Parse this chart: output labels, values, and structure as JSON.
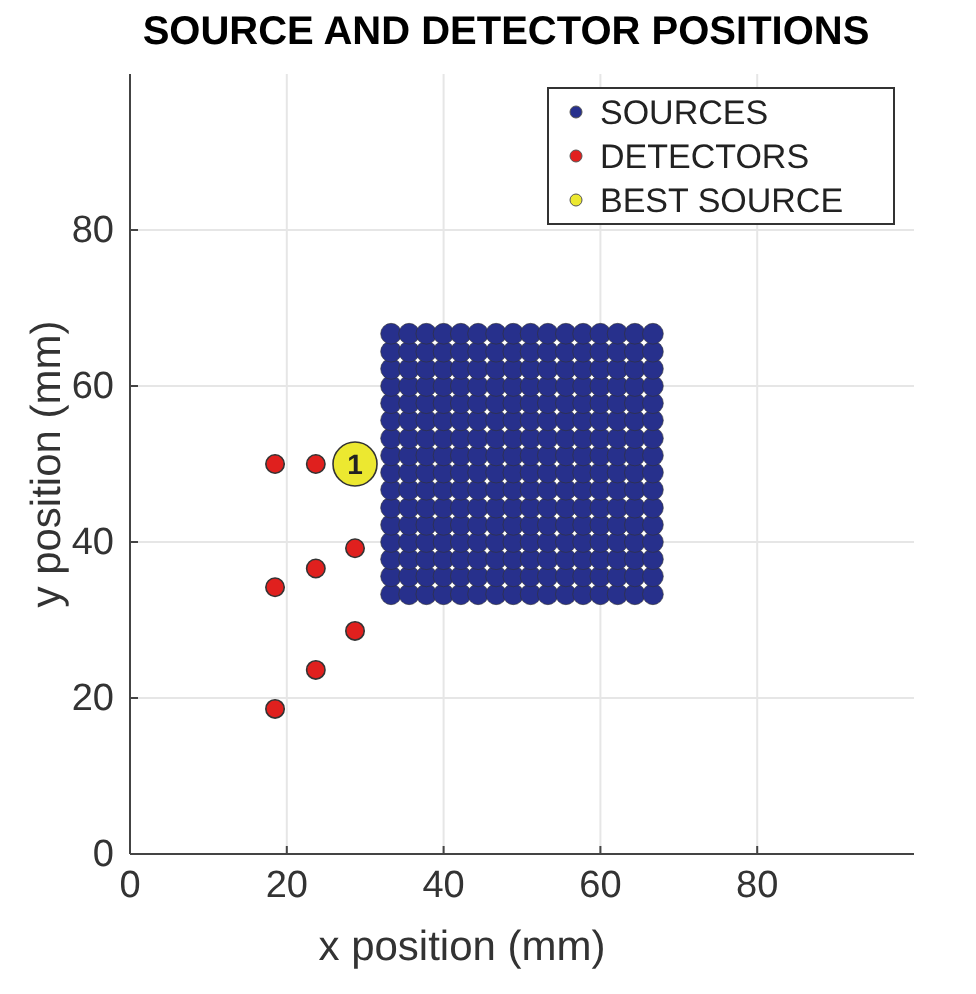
{
  "chart_data": {
    "type": "scatter",
    "title": "SOURCE AND DETECTOR POSITIONS",
    "xlabel": "x position (mm)",
    "ylabel": "y position (mm)",
    "xlim": [
      0,
      100
    ],
    "ylim": [
      0,
      100
    ],
    "xticks": [
      0,
      20,
      40,
      60,
      80
    ],
    "yticks": [
      0,
      20,
      40,
      60,
      80
    ],
    "grid": true,
    "legend": "top right",
    "marker": "circle",
    "series": [
      {
        "name": "SOURCES",
        "color": "#27308c",
        "x": [
          33.3,
          35.6,
          37.8,
          40.0,
          42.2,
          44.4,
          46.7,
          48.9,
          51.1,
          53.3,
          55.6,
          57.8,
          60.0,
          62.2,
          64.4,
          66.7,
          33.3,
          35.6,
          37.8,
          40.0,
          42.2,
          44.4,
          46.7,
          48.9,
          51.1,
          53.3,
          55.6,
          57.8,
          60.0,
          62.2,
          64.4,
          66.7,
          33.3,
          35.6,
          37.8,
          40.0,
          42.2,
          44.4,
          46.7,
          48.9,
          51.1,
          53.3,
          55.6,
          57.8,
          60.0,
          62.2,
          64.4,
          66.7,
          33.3,
          35.6,
          37.8,
          40.0,
          42.2,
          44.4,
          46.7,
          48.9,
          51.1,
          53.3,
          55.6,
          57.8,
          60.0,
          62.2,
          64.4,
          66.7,
          33.3,
          35.6,
          37.8,
          40.0,
          42.2,
          44.4,
          46.7,
          48.9,
          51.1,
          53.3,
          55.6,
          57.8,
          60.0,
          62.2,
          64.4,
          66.7,
          33.3,
          35.6,
          37.8,
          40.0,
          42.2,
          44.4,
          46.7,
          48.9,
          51.1,
          53.3,
          55.6,
          57.8,
          60.0,
          62.2,
          64.4,
          66.7,
          33.3,
          35.6,
          37.8,
          40.0,
          42.2,
          44.4,
          46.7,
          48.9,
          51.1,
          53.3,
          55.6,
          57.8,
          60.0,
          62.2,
          64.4,
          66.7,
          33.3,
          35.6,
          37.8,
          40.0,
          42.2,
          44.4,
          46.7,
          48.9,
          51.1,
          53.3,
          55.6,
          57.8,
          60.0,
          62.2,
          64.4,
          66.7,
          33.3,
          35.6,
          37.8,
          40.0,
          42.2,
          44.4,
          46.7,
          48.9,
          51.1,
          53.3,
          55.6,
          57.8,
          60.0,
          62.2,
          64.4,
          66.7,
          33.3,
          35.6,
          37.8,
          40.0,
          42.2,
          44.4,
          46.7,
          48.9,
          51.1,
          53.3,
          55.6,
          57.8,
          60.0,
          62.2,
          64.4,
          66.7,
          33.3,
          35.6,
          37.8,
          40.0,
          42.2,
          44.4,
          46.7,
          48.9,
          51.1,
          53.3,
          55.6,
          57.8,
          60.0,
          62.2,
          64.4,
          66.7,
          33.3,
          35.6,
          37.8,
          40.0,
          42.2,
          44.4,
          46.7,
          48.9,
          51.1,
          53.3,
          55.6,
          57.8,
          60.0,
          62.2,
          64.4,
          66.7,
          33.3,
          35.6,
          37.8,
          40.0,
          42.2,
          44.4,
          46.7,
          48.9,
          51.1,
          53.3,
          55.6,
          57.8,
          60.0,
          62.2,
          64.4,
          66.7,
          33.3,
          35.6,
          37.8,
          40.0,
          42.2,
          44.4,
          46.7,
          48.9,
          51.1,
          53.3,
          55.6,
          57.8,
          60.0,
          62.2,
          64.4,
          66.7,
          33.3,
          35.6,
          37.8,
          40.0,
          42.2,
          44.4,
          46.7,
          48.9,
          51.1,
          53.3,
          55.6,
          57.8,
          60.0,
          62.2,
          64.4,
          66.7,
          33.3,
          35.6,
          37.8,
          40.0,
          42.2,
          44.4,
          46.7,
          48.9,
          51.1,
          53.3,
          55.6,
          57.8,
          60.0,
          62.2,
          64.4,
          66.7
        ],
        "values": [
          33.3,
          33.3,
          33.3,
          33.3,
          33.3,
          33.3,
          33.3,
          33.3,
          33.3,
          33.3,
          33.3,
          33.3,
          33.3,
          33.3,
          33.3,
          33.3,
          35.6,
          35.6,
          35.6,
          35.6,
          35.6,
          35.6,
          35.6,
          35.6,
          35.6,
          35.6,
          35.6,
          35.6,
          35.6,
          35.6,
          35.6,
          35.6,
          37.8,
          37.8,
          37.8,
          37.8,
          37.8,
          37.8,
          37.8,
          37.8,
          37.8,
          37.8,
          37.8,
          37.8,
          37.8,
          37.8,
          37.8,
          37.8,
          40.0,
          40.0,
          40.0,
          40.0,
          40.0,
          40.0,
          40.0,
          40.0,
          40.0,
          40.0,
          40.0,
          40.0,
          40.0,
          40.0,
          40.0,
          40.0,
          42.2,
          42.2,
          42.2,
          42.2,
          42.2,
          42.2,
          42.2,
          42.2,
          42.2,
          42.2,
          42.2,
          42.2,
          42.2,
          42.2,
          42.2,
          42.2,
          44.4,
          44.4,
          44.4,
          44.4,
          44.4,
          44.4,
          44.4,
          44.4,
          44.4,
          44.4,
          44.4,
          44.4,
          44.4,
          44.4,
          44.4,
          44.4,
          46.7,
          46.7,
          46.7,
          46.7,
          46.7,
          46.7,
          46.7,
          46.7,
          46.7,
          46.7,
          46.7,
          46.7,
          46.7,
          46.7,
          46.7,
          46.7,
          48.9,
          48.9,
          48.9,
          48.9,
          48.9,
          48.9,
          48.9,
          48.9,
          48.9,
          48.9,
          48.9,
          48.9,
          48.9,
          48.9,
          48.9,
          48.9,
          51.1,
          51.1,
          51.1,
          51.1,
          51.1,
          51.1,
          51.1,
          51.1,
          51.1,
          51.1,
          51.1,
          51.1,
          51.1,
          51.1,
          51.1,
          51.1,
          53.3,
          53.3,
          53.3,
          53.3,
          53.3,
          53.3,
          53.3,
          53.3,
          53.3,
          53.3,
          53.3,
          53.3,
          53.3,
          53.3,
          53.3,
          53.3,
          55.6,
          55.6,
          55.6,
          55.6,
          55.6,
          55.6,
          55.6,
          55.6,
          55.6,
          55.6,
          55.6,
          55.6,
          55.6,
          55.6,
          55.6,
          55.6,
          57.8,
          57.8,
          57.8,
          57.8,
          57.8,
          57.8,
          57.8,
          57.8,
          57.8,
          57.8,
          57.8,
          57.8,
          57.8,
          57.8,
          57.8,
          57.8,
          60.0,
          60.0,
          60.0,
          60.0,
          60.0,
          60.0,
          60.0,
          60.0,
          60.0,
          60.0,
          60.0,
          60.0,
          60.0,
          60.0,
          60.0,
          60.0,
          62.2,
          62.2,
          62.2,
          62.2,
          62.2,
          62.2,
          62.2,
          62.2,
          62.2,
          62.2,
          62.2,
          62.2,
          62.2,
          62.2,
          62.2,
          62.2,
          64.4,
          64.4,
          64.4,
          64.4,
          64.4,
          64.4,
          64.4,
          64.4,
          64.4,
          64.4,
          64.4,
          64.4,
          64.4,
          64.4,
          64.4,
          64.4,
          66.7,
          66.7,
          66.7,
          66.7,
          66.7,
          66.7,
          66.7,
          66.7,
          66.7,
          66.7,
          66.7,
          66.7,
          66.7,
          66.7,
          66.7,
          66.7
        ]
      },
      {
        "name": "DETECTORS",
        "color": "#e0201e",
        "x": [
          18.5,
          23.7,
          28.7,
          23.7,
          18.5,
          28.7,
          23.7,
          18.5
        ],
        "values": [
          50,
          50,
          39.2,
          36.6,
          34.2,
          28.6,
          23.6,
          18.6
        ]
      },
      {
        "name": "BEST SOURCE",
        "color": "#ece830",
        "x": [
          28.7
        ],
        "values": [
          50
        ]
      }
    ],
    "annotations": [
      {
        "text": "1",
        "x": 28.7,
        "y": 50
      }
    ]
  }
}
